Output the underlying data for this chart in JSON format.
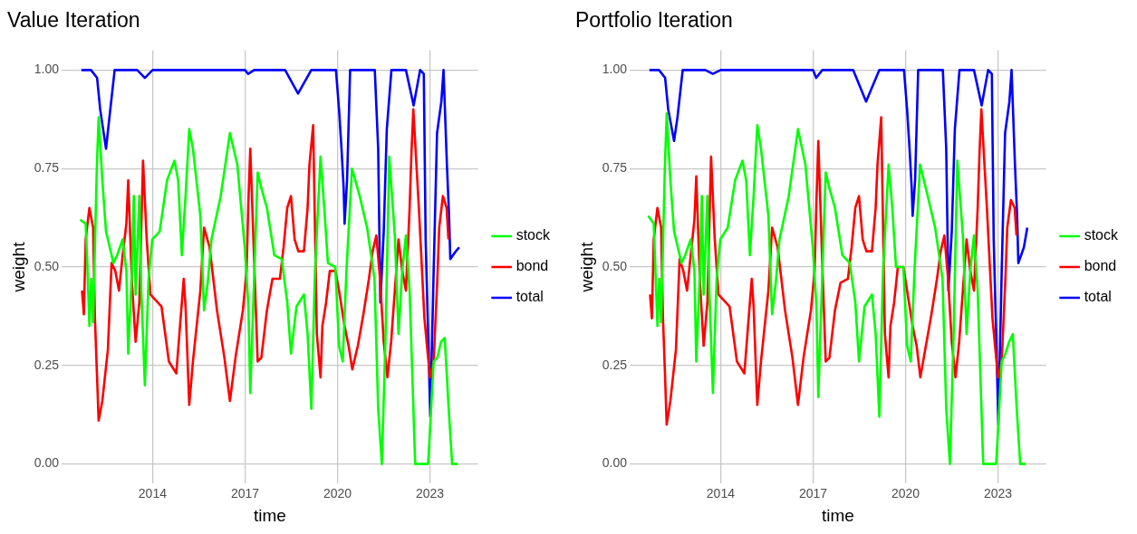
{
  "chart_data": [
    {
      "type": "line",
      "title": "Value Iteration",
      "xlabel": "time",
      "ylabel": "weight",
      "xlim": [
        2011.05,
        2024.56
      ],
      "xticks": [
        2014,
        2017,
        2020,
        2023
      ],
      "ylim": [
        -0.05,
        1.05
      ],
      "yticks": [
        {
          "value": 0,
          "label": "0.00"
        },
        {
          "value": 0.25,
          "label": "0.25"
        },
        {
          "value": 0.5,
          "label": "0.50"
        },
        {
          "value": 0.75,
          "label": "0.75"
        },
        {
          "value": 1,
          "label": "1.00"
        }
      ],
      "grid": true,
      "legend": "right",
      "marker": "none",
      "series": [
        {
          "name": "stock",
          "color": "#00ff00",
          "x": [
            2011.65,
            2011.83,
            2011.89,
            2011.95,
            2012.01,
            2012.07,
            2012.19,
            2012.25,
            2012.37,
            2012.49,
            2012.73,
            2012.85,
            2013.03,
            2013.15,
            2013.21,
            2013.33,
            2013.39,
            2013.45,
            2013.57,
            2013.63,
            2013.75,
            2013.87,
            2013.99,
            2014.23,
            2014.47,
            2014.71,
            2014.83,
            2014.95,
            2015.07,
            2015.19,
            2015.31,
            2015.55,
            2015.67,
            2015.79,
            2015.91,
            2016.21,
            2016.51,
            2016.75,
            2016.99,
            2017.11,
            2017.17,
            2017.29,
            2017.41,
            2017.53,
            2017.71,
            2017.95,
            2018.19,
            2018.37,
            2018.49,
            2018.67,
            2018.91,
            2019.03,
            2019.15,
            2019.27,
            2019.45,
            2019.57,
            2019.69,
            2019.93,
            2020.05,
            2020.17,
            2020.29,
            2020.47,
            2020.72,
            2020.96,
            2021.2,
            2021.32,
            2021.44,
            2021.56,
            2021.68,
            2021.86,
            2021.98,
            2022.1,
            2022.22,
            2022.34,
            2022.52,
            2022.94,
            2023.12,
            2023.24,
            2023.36,
            2023.48,
            2023.6,
            2023.72,
            2023.9
          ],
          "values": [
            0.62,
            0.61,
            0.49,
            0.35,
            0.47,
            0.36,
            0.75,
            0.88,
            0.72,
            0.59,
            0.51,
            0.53,
            0.57,
            0.49,
            0.28,
            0.49,
            0.68,
            0.43,
            0.68,
            0.45,
            0.2,
            0.47,
            0.57,
            0.59,
            0.72,
            0.77,
            0.72,
            0.53,
            0.68,
            0.85,
            0.8,
            0.63,
            0.39,
            0.46,
            0.57,
            0.68,
            0.84,
            0.76,
            0.55,
            0.4,
            0.18,
            0.46,
            0.74,
            0.7,
            0.65,
            0.53,
            0.52,
            0.41,
            0.28,
            0.4,
            0.43,
            0.33,
            0.14,
            0.49,
            0.78,
            0.65,
            0.51,
            0.5,
            0.3,
            0.26,
            0.49,
            0.75,
            0.68,
            0.6,
            0.47,
            0.14,
            0,
            0.33,
            0.78,
            0.58,
            0.33,
            0.49,
            0.58,
            0.44,
            0,
            0,
            0.26,
            0.27,
            0.31,
            0.32,
            0.15,
            0,
            0
          ]
        },
        {
          "name": "bond",
          "color": "#ff0000",
          "x": [
            2011.71,
            2011.77,
            2011.83,
            2011.95,
            2012.07,
            2012.13,
            2012.19,
            2012.25,
            2012.37,
            2012.55,
            2012.67,
            2012.79,
            2012.91,
            2013.03,
            2013.15,
            2013.21,
            2013.33,
            2013.45,
            2013.57,
            2013.69,
            2013.81,
            2013.93,
            2014.29,
            2014.53,
            2014.77,
            2014.89,
            2015.01,
            2015.07,
            2015.19,
            2015.31,
            2015.55,
            2015.67,
            2015.85,
            2016.09,
            2016.33,
            2016.51,
            2016.69,
            2016.93,
            2017.05,
            2017.11,
            2017.17,
            2017.29,
            2017.41,
            2017.53,
            2017.71,
            2017.89,
            2018.13,
            2018.25,
            2018.37,
            2018.49,
            2018.61,
            2018.73,
            2018.91,
            2019.03,
            2019.09,
            2019.21,
            2019.33,
            2019.45,
            2019.51,
            2019.63,
            2019.75,
            2019.93,
            2020.05,
            2020.23,
            2020.36,
            2020.48,
            2020.66,
            2020.84,
            2021.02,
            2021.14,
            2021.26,
            2021.38,
            2021.5,
            2021.62,
            2021.74,
            2021.86,
            2021.98,
            2022.1,
            2022.22,
            2022.34,
            2022.4,
            2022.46,
            2022.64,
            2022.82,
            2023.0,
            2023.12,
            2023.24,
            2023.3,
            2023.42,
            2023.54,
            2023.6
          ],
          "values": [
            0.44,
            0.38,
            0.57,
            0.65,
            0.6,
            0.37,
            0.24,
            0.11,
            0.16,
            0.29,
            0.51,
            0.49,
            0.44,
            0.53,
            0.61,
            0.72,
            0.46,
            0.31,
            0.41,
            0.77,
            0.57,
            0.43,
            0.4,
            0.26,
            0.23,
            0.35,
            0.47,
            0.4,
            0.15,
            0.26,
            0.44,
            0.6,
            0.55,
            0.39,
            0.27,
            0.16,
            0.27,
            0.39,
            0.49,
            0.67,
            0.8,
            0.53,
            0.26,
            0.27,
            0.39,
            0.47,
            0.47,
            0.55,
            0.65,
            0.68,
            0.57,
            0.54,
            0.54,
            0.65,
            0.76,
            0.86,
            0.33,
            0.22,
            0.35,
            0.41,
            0.49,
            0.49,
            0.44,
            0.35,
            0.3,
            0.24,
            0.3,
            0.38,
            0.47,
            0.54,
            0.58,
            0.47,
            0.31,
            0.22,
            0.31,
            0.44,
            0.57,
            0.49,
            0.44,
            0.65,
            0.79,
            0.9,
            0.65,
            0.37,
            0.22,
            0.26,
            0.47,
            0.6,
            0.68,
            0.65,
            0.57
          ]
        },
        {
          "name": "total",
          "color": "#0000ff",
          "x": [
            2011.69,
            2012.0,
            2012.2,
            2012.3,
            2012.49,
            2012.6,
            2012.77,
            2013.5,
            2013.75,
            2014.0,
            2017.0,
            2017.1,
            2017.3,
            2018.3,
            2018.72,
            2019.15,
            2019.95,
            2020.05,
            2020.13,
            2020.2,
            2020.23,
            2020.31,
            2020.41,
            2021.21,
            2021.32,
            2021.39,
            2021.5,
            2021.6,
            2021.75,
            2022.22,
            2022.47,
            2022.68,
            2022.8,
            2022.86,
            2022.94,
            2023.01,
            2023.12,
            2023.23,
            2023.37,
            2023.44,
            2023.55,
            2023.62,
            2023.66,
            2023.84,
            2023.95
          ],
          "values": [
            1,
            1,
            0.98,
            0.9,
            0.8,
            0.88,
            1,
            1,
            0.98,
            1,
            1,
            0.99,
            1,
            1,
            0.94,
            1,
            1,
            0.9,
            0.8,
            0.7,
            0.61,
            0.72,
            1,
            1,
            0.8,
            0.41,
            0.59,
            0.85,
            1,
            1,
            0.91,
            1,
            0.99,
            0.57,
            0.33,
            0.12,
            0.49,
            0.84,
            0.92,
            1,
            0.76,
            0.63,
            0.52,
            0.54,
            0.55
          ]
        }
      ]
    },
    {
      "type": "line",
      "title": "Portfolio Iteration",
      "xlabel": "time",
      "ylabel": "weight",
      "xlim": [
        2011.05,
        2024.56
      ],
      "xticks": [
        2014,
        2017,
        2020,
        2023
      ],
      "ylim": [
        -0.05,
        1.05
      ],
      "yticks": [
        {
          "value": 0,
          "label": "0.00"
        },
        {
          "value": 0.25,
          "label": "0.25"
        },
        {
          "value": 0.5,
          "label": "0.50"
        },
        {
          "value": 0.75,
          "label": "0.75"
        },
        {
          "value": 1,
          "label": "1.00"
        }
      ],
      "grid": true,
      "legend": "right",
      "marker": "none",
      "series": [
        {
          "name": "stock",
          "color": "#00ff00",
          "x": [
            2011.65,
            2011.83,
            2011.89,
            2011.95,
            2012.01,
            2012.07,
            2012.19,
            2012.25,
            2012.37,
            2012.49,
            2012.73,
            2012.85,
            2013.03,
            2013.15,
            2013.21,
            2013.33,
            2013.39,
            2013.45,
            2013.57,
            2013.63,
            2013.75,
            2013.87,
            2013.99,
            2014.23,
            2014.47,
            2014.71,
            2014.83,
            2014.95,
            2015.07,
            2015.19,
            2015.31,
            2015.55,
            2015.67,
            2015.79,
            2015.91,
            2016.21,
            2016.51,
            2016.75,
            2016.99,
            2017.11,
            2017.17,
            2017.29,
            2017.41,
            2017.53,
            2017.71,
            2017.95,
            2018.19,
            2018.37,
            2018.49,
            2018.67,
            2018.91,
            2019.03,
            2019.15,
            2019.27,
            2019.45,
            2019.57,
            2019.69,
            2019.93,
            2020.05,
            2020.17,
            2020.29,
            2020.47,
            2020.72,
            2020.96,
            2021.2,
            2021.32,
            2021.44,
            2021.56,
            2021.68,
            2021.86,
            2021.98,
            2022.1,
            2022.22,
            2022.34,
            2022.52,
            2022.94,
            2023.12,
            2023.24,
            2023.36,
            2023.48,
            2023.6,
            2023.72,
            2023.9
          ],
          "values": [
            0.63,
            0.61,
            0.48,
            0.35,
            0.47,
            0.36,
            0.75,
            0.89,
            0.72,
            0.59,
            0.51,
            0.53,
            0.57,
            0.49,
            0.26,
            0.49,
            0.68,
            0.43,
            0.68,
            0.45,
            0.18,
            0.47,
            0.57,
            0.6,
            0.72,
            0.77,
            0.72,
            0.53,
            0.68,
            0.86,
            0.8,
            0.63,
            0.38,
            0.46,
            0.57,
            0.68,
            0.85,
            0.76,
            0.55,
            0.4,
            0.17,
            0.46,
            0.74,
            0.7,
            0.65,
            0.53,
            0.51,
            0.41,
            0.26,
            0.4,
            0.43,
            0.33,
            0.12,
            0.49,
            0.76,
            0.65,
            0.5,
            0.5,
            0.3,
            0.26,
            0.49,
            0.76,
            0.68,
            0.6,
            0.47,
            0.14,
            0,
            0.33,
            0.77,
            0.58,
            0.33,
            0.49,
            0.58,
            0.44,
            0,
            0,
            0.26,
            0.28,
            0.31,
            0.33,
            0.15,
            0,
            0
          ]
        },
        {
          "name": "bond",
          "color": "#ff0000",
          "x": [
            2011.71,
            2011.77,
            2011.83,
            2011.95,
            2012.07,
            2012.13,
            2012.19,
            2012.25,
            2012.37,
            2012.55,
            2012.67,
            2012.79,
            2012.91,
            2013.03,
            2013.15,
            2013.21,
            2013.33,
            2013.45,
            2013.57,
            2013.69,
            2013.81,
            2013.93,
            2014.29,
            2014.53,
            2014.77,
            2014.89,
            2015.01,
            2015.07,
            2015.19,
            2015.31,
            2015.55,
            2015.67,
            2015.85,
            2016.09,
            2016.33,
            2016.51,
            2016.69,
            2016.93,
            2017.05,
            2017.11,
            2017.17,
            2017.29,
            2017.41,
            2017.53,
            2017.71,
            2017.89,
            2018.13,
            2018.25,
            2018.37,
            2018.49,
            2018.61,
            2018.73,
            2018.91,
            2019.03,
            2019.09,
            2019.21,
            2019.33,
            2019.45,
            2019.51,
            2019.63,
            2019.75,
            2019.93,
            2020.05,
            2020.23,
            2020.36,
            2020.48,
            2020.66,
            2020.84,
            2021.02,
            2021.14,
            2021.26,
            2021.38,
            2021.5,
            2021.62,
            2021.74,
            2021.86,
            2021.98,
            2022.1,
            2022.22,
            2022.34,
            2022.4,
            2022.46,
            2022.64,
            2022.82,
            2023.0,
            2023.12,
            2023.24,
            2023.3,
            2023.42,
            2023.54,
            2023.6
          ],
          "values": [
            0.43,
            0.37,
            0.57,
            0.65,
            0.6,
            0.37,
            0.24,
            0.1,
            0.16,
            0.29,
            0.52,
            0.49,
            0.44,
            0.53,
            0.62,
            0.73,
            0.46,
            0.3,
            0.41,
            0.78,
            0.57,
            0.43,
            0.4,
            0.26,
            0.23,
            0.35,
            0.47,
            0.4,
            0.15,
            0.26,
            0.44,
            0.6,
            0.55,
            0.39,
            0.27,
            0.15,
            0.27,
            0.39,
            0.49,
            0.67,
            0.82,
            0.53,
            0.26,
            0.27,
            0.39,
            0.46,
            0.47,
            0.55,
            0.65,
            0.68,
            0.57,
            0.54,
            0.54,
            0.65,
            0.76,
            0.88,
            0.33,
            0.22,
            0.35,
            0.41,
            0.5,
            0.5,
            0.44,
            0.35,
            0.3,
            0.22,
            0.3,
            0.38,
            0.47,
            0.54,
            0.58,
            0.47,
            0.31,
            0.22,
            0.31,
            0.44,
            0.57,
            0.49,
            0.44,
            0.65,
            0.79,
            0.9,
            0.65,
            0.37,
            0.22,
            0.26,
            0.47,
            0.6,
            0.67,
            0.65,
            0.58
          ]
        },
        {
          "name": "total",
          "color": "#0000ff",
          "x": [
            2011.69,
            2012.0,
            2012.2,
            2012.3,
            2012.49,
            2012.6,
            2012.77,
            2013.5,
            2013.75,
            2014.0,
            2017.0,
            2017.1,
            2017.3,
            2018.3,
            2018.72,
            2019.15,
            2019.95,
            2020.05,
            2020.13,
            2020.2,
            2020.23,
            2020.31,
            2020.41,
            2021.21,
            2021.32,
            2021.39,
            2021.5,
            2021.6,
            2021.75,
            2022.22,
            2022.47,
            2022.68,
            2022.8,
            2022.86,
            2022.94,
            2023.01,
            2023.12,
            2023.23,
            2023.37,
            2023.44,
            2023.55,
            2023.62,
            2023.66,
            2023.84,
            2023.95
          ],
          "values": [
            1,
            1,
            0.98,
            0.9,
            0.82,
            0.88,
            1,
            1,
            0.99,
            1,
            1,
            0.98,
            1,
            1,
            0.92,
            1,
            1,
            0.9,
            0.8,
            0.7,
            0.63,
            0.72,
            1,
            1,
            0.8,
            0.44,
            0.59,
            0.85,
            1,
            1,
            0.91,
            1,
            0.99,
            0.57,
            0.33,
            0.1,
            0.49,
            0.84,
            0.92,
            1,
            0.76,
            0.63,
            0.51,
            0.55,
            0.6
          ]
        }
      ]
    }
  ]
}
